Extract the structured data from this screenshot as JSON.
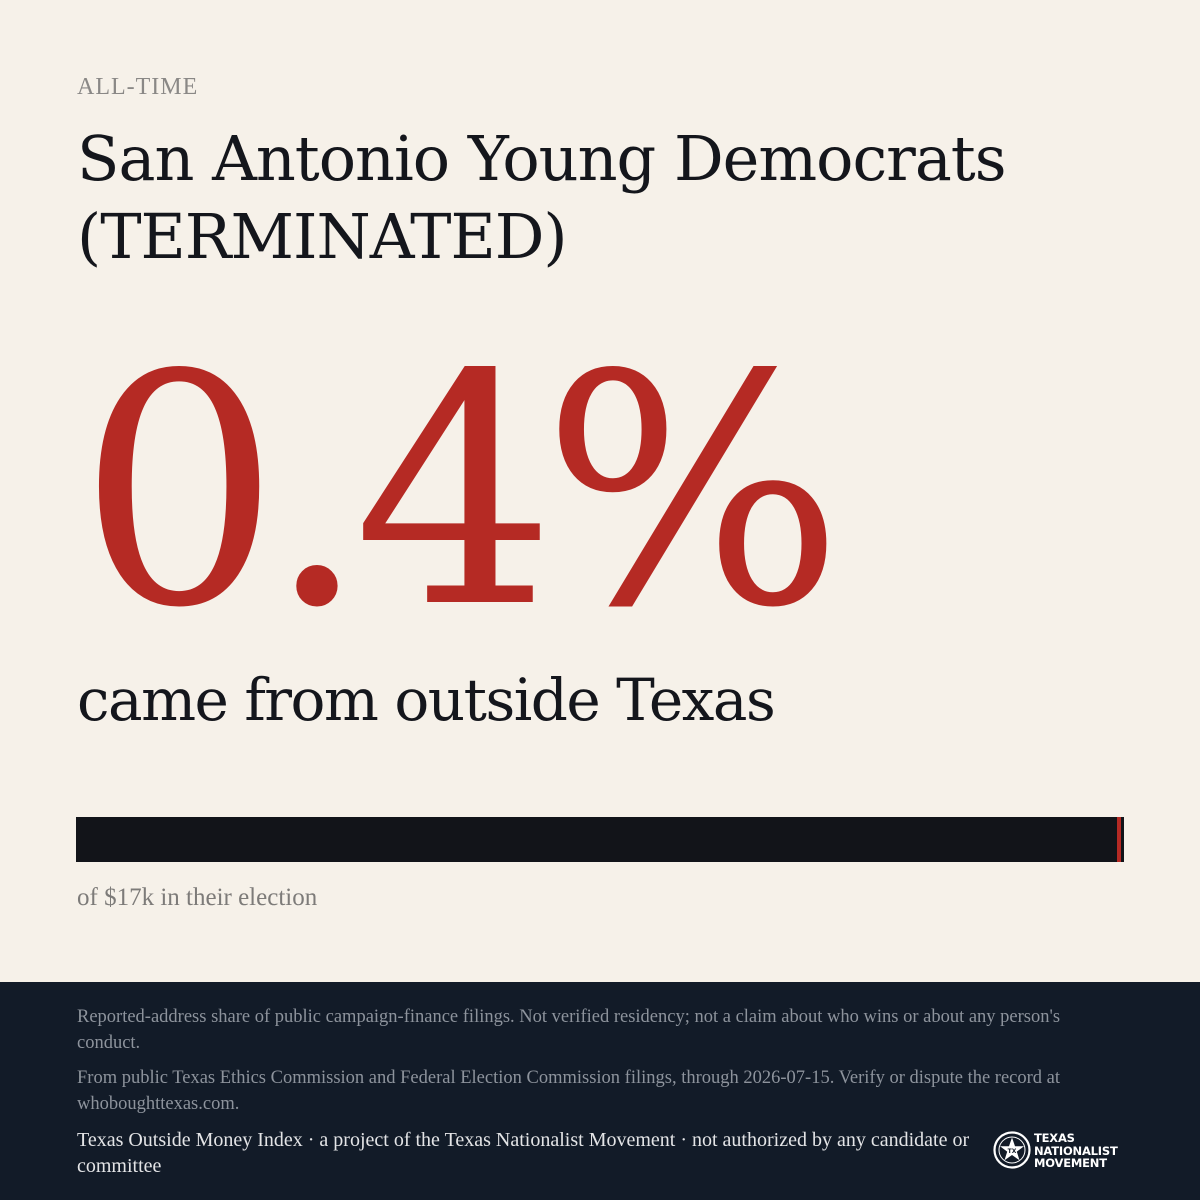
{
  "header": {
    "eyebrow": "ALL-TIME",
    "title": "San Antonio Young Democrats (TERMINATED)"
  },
  "stat": {
    "value": "0.4%",
    "fraction": 0.004,
    "caption": "came from outside Texas"
  },
  "bar": {
    "caption": "of $17k in their election"
  },
  "colors": {
    "accent": "#b52a24",
    "ink": "#14161c",
    "background": "#f6f1e9",
    "footer": "#121b28"
  },
  "footer": {
    "disclaimer_1": "Reported-address share of public campaign-finance filings. Not verified residency; not a claim about who wins or about any person's conduct.",
    "disclaimer_2": "From public Texas Ethics Commission and Federal Election Commission filings, through 2026-07-15. Verify or dispute the record at whoboughttexas.com.",
    "credit": "Texas Outside Money Index · a project of the Texas Nationalist Movement · not authorized by any candidate or committee",
    "brand_line_1": "TEXAS",
    "brand_line_2": "NATIONALIST",
    "brand_line_3": "MOVEMENT",
    "brand_icon": "star-seal-icon"
  }
}
